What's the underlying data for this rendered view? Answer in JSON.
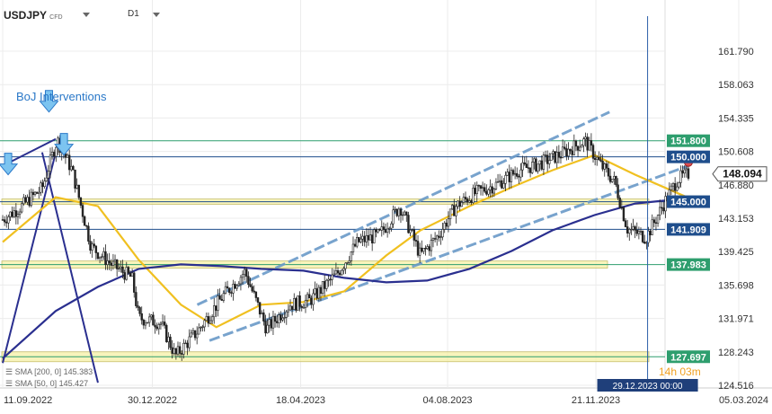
{
  "header": {
    "symbol": "USDJPY",
    "instrument_type": "CFD",
    "timeframe": "D1"
  },
  "annotation": {
    "text": "BoJ Interventions"
  },
  "sma_legend": [
    {
      "label": "SMA [200, 0] 145.383",
      "color": "#2a2f8f"
    },
    {
      "label": "SMA [50, 0] 145.427",
      "color": "#f0c020"
    }
  ],
  "countdown": "14h 03m",
  "colors": {
    "sma200": "#2a2f8f",
    "sma50": "#f0c020",
    "channel": "#6a9ac8",
    "hline": "#1f4e8c",
    "green_label": "#2e9e6e",
    "candle": "#222222",
    "zone": "#f5f0a0"
  },
  "chart_data": {
    "type": "candlestick",
    "symbol": "USDJPY",
    "timeframe": "D1",
    "x_ticks": [
      "11.09.2022",
      "30.12.2022",
      "18.04.2023",
      "04.08.2023",
      "21.11.2023",
      "05.03.2024"
    ],
    "y_ticks": [
      161.79,
      158.063,
      154.335,
      150.608,
      146.88,
      143.153,
      139.425,
      135.698,
      131.971,
      128.243,
      124.516
    ],
    "y_tick_labels": [
      "161.790",
      "158.063",
      "154.335",
      "150.608",
      "146.880",
      "143.153",
      "139.425",
      "135.698",
      "131.971",
      "128.243",
      "124.516"
    ],
    "ylim": [
      124.516,
      165.0
    ],
    "current_price": "148.094",
    "crosshair_date": "29.12.2023 00:00",
    "levels": [
      {
        "value": 151.8,
        "label": "151.800",
        "style": "green"
      },
      {
        "value": 150.0,
        "label": "150.000",
        "style": "blue"
      },
      {
        "value": 145.0,
        "label": "145.000",
        "style": "blue_zone"
      },
      {
        "value": 141.909,
        "label": "141.909",
        "style": "blue"
      },
      {
        "value": 137.983,
        "label": "137.983",
        "style": "green_zone"
      },
      {
        "value": 127.697,
        "label": "127.697",
        "style": "green_zone"
      }
    ],
    "price_path": [
      {
        "date": "2022-09-11",
        "close": 143.0
      },
      {
        "date": "2022-09-25",
        "close": 144.5
      },
      {
        "date": "2022-10-10",
        "close": 146.5
      },
      {
        "date": "2022-10-21",
        "close": 151.9
      },
      {
        "date": "2022-11-01",
        "close": 148.5
      },
      {
        "date": "2022-11-15",
        "close": 140.0
      },
      {
        "date": "2022-11-30",
        "close": 138.0
      },
      {
        "date": "2022-12-15",
        "close": 136.5
      },
      {
        "date": "2022-12-20",
        "close": 132.0
      },
      {
        "date": "2023-01-05",
        "close": 131.5
      },
      {
        "date": "2023-01-16",
        "close": 127.8
      },
      {
        "date": "2023-02-01",
        "close": 130.5
      },
      {
        "date": "2023-02-20",
        "close": 134.5
      },
      {
        "date": "2023-03-08",
        "close": 137.2
      },
      {
        "date": "2023-03-24",
        "close": 130.8
      },
      {
        "date": "2023-04-10",
        "close": 133.5
      },
      {
        "date": "2023-04-25",
        "close": 134.0
      },
      {
        "date": "2023-05-15",
        "close": 137.0
      },
      {
        "date": "2023-05-30",
        "close": 140.5
      },
      {
        "date": "2023-06-15",
        "close": 141.3
      },
      {
        "date": "2023-06-30",
        "close": 144.5
      },
      {
        "date": "2023-07-15",
        "close": 139.0
      },
      {
        "date": "2023-07-28",
        "close": 141.2
      },
      {
        "date": "2023-08-10",
        "close": 144.5
      },
      {
        "date": "2023-08-25",
        "close": 146.0
      },
      {
        "date": "2023-09-10",
        "close": 147.0
      },
      {
        "date": "2023-09-25",
        "close": 148.5
      },
      {
        "date": "2023-10-10",
        "close": 149.2
      },
      {
        "date": "2023-10-25",
        "close": 150.2
      },
      {
        "date": "2023-11-13",
        "close": 151.8
      },
      {
        "date": "2023-11-25",
        "close": 149.0
      },
      {
        "date": "2023-12-05",
        "close": 147.2
      },
      {
        "date": "2023-12-14",
        "close": 142.0
      },
      {
        "date": "2023-12-28",
        "close": 141.0
      },
      {
        "date": "2024-01-10",
        "close": 144.8
      },
      {
        "date": "2024-01-20",
        "close": 147.5
      },
      {
        "date": "2024-01-28",
        "close": 148.094
      }
    ],
    "series": [
      {
        "name": "SMA [50, 0] 145.427",
        "values": [
          {
            "date": "2022-09-11",
            "y": 140.5
          },
          {
            "date": "2022-10-20",
            "y": 145.5
          },
          {
            "date": "2022-11-20",
            "y": 144.5
          },
          {
            "date": "2022-12-20",
            "y": 138.5
          },
          {
            "date": "2023-01-20",
            "y": 133.5
          },
          {
            "date": "2023-02-15",
            "y": 131.0
          },
          {
            "date": "2023-03-20",
            "y": 133.5
          },
          {
            "date": "2023-04-20",
            "y": 133.8
          },
          {
            "date": "2023-05-20",
            "y": 135.0
          },
          {
            "date": "2023-06-20",
            "y": 139.0
          },
          {
            "date": "2023-07-15",
            "y": 141.8
          },
          {
            "date": "2023-08-20",
            "y": 144.5
          },
          {
            "date": "2023-09-20",
            "y": 146.6
          },
          {
            "date": "2023-10-20",
            "y": 148.5
          },
          {
            "date": "2023-11-20",
            "y": 150.2
          },
          {
            "date": "2023-12-20",
            "y": 148.0
          },
          {
            "date": "2024-01-28",
            "y": 145.427
          }
        ]
      },
      {
        "name": "SMA [200, 0] 145.383",
        "values": [
          {
            "date": "2022-09-11",
            "y": 127.5
          },
          {
            "date": "2022-10-20",
            "y": 132.8
          },
          {
            "date": "2022-11-20",
            "y": 135.5
          },
          {
            "date": "2022-12-20",
            "y": 137.5
          },
          {
            "date": "2023-01-20",
            "y": 138.0
          },
          {
            "date": "2023-02-20",
            "y": 137.8
          },
          {
            "date": "2023-03-20",
            "y": 137.5
          },
          {
            "date": "2023-04-20",
            "y": 137.3
          },
          {
            "date": "2023-05-20",
            "y": 136.5
          },
          {
            "date": "2023-06-20",
            "y": 136.0
          },
          {
            "date": "2023-07-20",
            "y": 136.2
          },
          {
            "date": "2023-08-20",
            "y": 137.5
          },
          {
            "date": "2023-09-20",
            "y": 139.5
          },
          {
            "date": "2023-10-20",
            "y": 141.8
          },
          {
            "date": "2023-11-20",
            "y": 143.5
          },
          {
            "date": "2023-12-20",
            "y": 144.8
          },
          {
            "date": "2024-01-28",
            "y": 145.383
          }
        ]
      }
    ],
    "trend_lines": [
      {
        "kind": "channel",
        "from": {
          "date": "2023-02-01",
          "y": 133.5
        },
        "to": {
          "date": "2023-12-01",
          "y": 155.0
        }
      },
      {
        "kind": "channel",
        "from": {
          "date": "2023-02-10",
          "y": 129.5
        },
        "to": {
          "date": "2024-01-28",
          "y": 149.0
        }
      },
      {
        "kind": "solid",
        "from": {
          "date": "2022-09-11",
          "y": 127.0
        },
        "to": {
          "date": "2022-10-20",
          "y": 150.5
        }
      },
      {
        "kind": "solid",
        "from": {
          "date": "2022-09-11",
          "y": 149.0
        },
        "to": {
          "date": "2022-10-20",
          "y": 152.0
        }
      },
      {
        "kind": "solid",
        "from": {
          "date": "2022-10-10",
          "y": 150.5
        },
        "to": {
          "date": "2022-11-20",
          "y": 124.8
        }
      }
    ],
    "markers": [
      {
        "kind": "down-arrow",
        "date": "2022-09-15",
        "y": 148.0
      },
      {
        "kind": "down-arrow",
        "date": "2022-10-15",
        "y": 155.0
      },
      {
        "kind": "down-arrow",
        "date": "2022-10-26",
        "y": 150.2
      },
      {
        "kind": "circle",
        "date": "2024-01-28",
        "y": 149.4
      }
    ]
  }
}
